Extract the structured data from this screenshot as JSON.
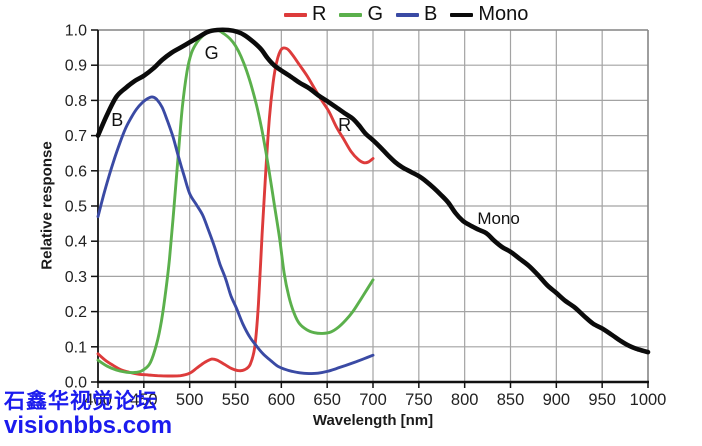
{
  "watermark": {
    "line1": "石鑫华视觉论坛",
    "line2": "visionbbs.com",
    "color": "#1b1bee"
  },
  "chart_data": {
    "type": "line",
    "title": "",
    "xlabel": "Wavelength [nm]",
    "ylabel": "Relative response",
    "xlim": [
      400,
      1000
    ],
    "ylim": [
      0.0,
      1.0
    ],
    "xticks": [
      400,
      450,
      500,
      550,
      600,
      650,
      700,
      750,
      800,
      850,
      900,
      950,
      1000
    ],
    "yticks": [
      0.0,
      0.1,
      0.2,
      0.3,
      0.4,
      0.5,
      0.6,
      0.7,
      0.8,
      0.9,
      1.0
    ],
    "grid": true,
    "legend_position": "top-center",
    "colors": {
      "grid": "#a3a3a3",
      "axis": "#1a1a1a",
      "tick_label": "#222222"
    },
    "series": [
      {
        "name": "R",
        "color": "#dd3b3b",
        "points": [
          [
            400,
            0.08
          ],
          [
            408,
            0.062
          ],
          [
            416,
            0.048
          ],
          [
            425,
            0.035
          ],
          [
            435,
            0.027
          ],
          [
            445,
            0.022
          ],
          [
            455,
            0.02
          ],
          [
            465,
            0.018
          ],
          [
            478,
            0.017
          ],
          [
            490,
            0.018
          ],
          [
            500,
            0.025
          ],
          [
            508,
            0.04
          ],
          [
            516,
            0.055
          ],
          [
            524,
            0.065
          ],
          [
            530,
            0.062
          ],
          [
            538,
            0.05
          ],
          [
            546,
            0.038
          ],
          [
            554,
            0.032
          ],
          [
            560,
            0.035
          ],
          [
            566,
            0.05
          ],
          [
            571,
            0.1
          ],
          [
            575,
            0.22
          ],
          [
            579,
            0.42
          ],
          [
            583,
            0.6
          ],
          [
            587,
            0.75
          ],
          [
            591,
            0.85
          ],
          [
            595,
            0.91
          ],
          [
            600,
            0.945
          ],
          [
            606,
            0.947
          ],
          [
            612,
            0.93
          ],
          [
            620,
            0.9
          ],
          [
            628,
            0.87
          ],
          [
            636,
            0.835
          ],
          [
            644,
            0.8
          ],
          [
            652,
            0.768
          ],
          [
            660,
            0.725
          ],
          [
            668,
            0.69
          ],
          [
            676,
            0.655
          ],
          [
            684,
            0.632
          ],
          [
            690,
            0.623
          ],
          [
            695,
            0.625
          ],
          [
            700,
            0.635
          ]
        ]
      },
      {
        "name": "G",
        "color": "#5bb04c",
        "points": [
          [
            400,
            0.062
          ],
          [
            410,
            0.045
          ],
          [
            420,
            0.034
          ],
          [
            430,
            0.028
          ],
          [
            440,
            0.027
          ],
          [
            448,
            0.032
          ],
          [
            456,
            0.05
          ],
          [
            462,
            0.09
          ],
          [
            468,
            0.155
          ],
          [
            473,
            0.24
          ],
          [
            478,
            0.35
          ],
          [
            483,
            0.5
          ],
          [
            488,
            0.66
          ],
          [
            492,
            0.78
          ],
          [
            497,
            0.88
          ],
          [
            502,
            0.935
          ],
          [
            508,
            0.965
          ],
          [
            515,
            0.985
          ],
          [
            522,
            0.998
          ],
          [
            530,
            1.0
          ],
          [
            537,
            0.99
          ],
          [
            544,
            0.975
          ],
          [
            550,
            0.955
          ],
          [
            556,
            0.925
          ],
          [
            562,
            0.885
          ],
          [
            568,
            0.835
          ],
          [
            574,
            0.775
          ],
          [
            580,
            0.7
          ],
          [
            586,
            0.61
          ],
          [
            592,
            0.51
          ],
          [
            598,
            0.41
          ],
          [
            603,
            0.31
          ],
          [
            608,
            0.245
          ],
          [
            614,
            0.195
          ],
          [
            620,
            0.165
          ],
          [
            628,
            0.148
          ],
          [
            636,
            0.14
          ],
          [
            645,
            0.138
          ],
          [
            654,
            0.142
          ],
          [
            662,
            0.155
          ],
          [
            670,
            0.175
          ],
          [
            678,
            0.2
          ],
          [
            686,
            0.232
          ],
          [
            694,
            0.265
          ],
          [
            700,
            0.29
          ]
        ]
      },
      {
        "name": "B",
        "color": "#3a4aa4",
        "points": [
          [
            400,
            0.47
          ],
          [
            406,
            0.53
          ],
          [
            412,
            0.585
          ],
          [
            418,
            0.635
          ],
          [
            424,
            0.68
          ],
          [
            430,
            0.72
          ],
          [
            436,
            0.75
          ],
          [
            442,
            0.775
          ],
          [
            448,
            0.793
          ],
          [
            454,
            0.805
          ],
          [
            459,
            0.81
          ],
          [
            464,
            0.803
          ],
          [
            470,
            0.78
          ],
          [
            476,
            0.74
          ],
          [
            482,
            0.695
          ],
          [
            488,
            0.638
          ],
          [
            494,
            0.585
          ],
          [
            500,
            0.535
          ],
          [
            507,
            0.505
          ],
          [
            514,
            0.475
          ],
          [
            520,
            0.435
          ],
          [
            527,
            0.385
          ],
          [
            533,
            0.335
          ],
          [
            539,
            0.295
          ],
          [
            545,
            0.245
          ],
          [
            551,
            0.21
          ],
          [
            558,
            0.165
          ],
          [
            565,
            0.13
          ],
          [
            572,
            0.105
          ],
          [
            580,
            0.08
          ],
          [
            588,
            0.062
          ],
          [
            596,
            0.045
          ],
          [
            604,
            0.036
          ],
          [
            612,
            0.03
          ],
          [
            620,
            0.026
          ],
          [
            630,
            0.024
          ],
          [
            640,
            0.025
          ],
          [
            650,
            0.03
          ],
          [
            660,
            0.038
          ],
          [
            670,
            0.047
          ],
          [
            680,
            0.056
          ],
          [
            690,
            0.066
          ],
          [
            700,
            0.076
          ]
        ]
      },
      {
        "name": "Mono",
        "color": "#0b0b0b",
        "points": [
          [
            400,
            0.7
          ],
          [
            410,
            0.76
          ],
          [
            420,
            0.81
          ],
          [
            430,
            0.835
          ],
          [
            440,
            0.855
          ],
          [
            450,
            0.87
          ],
          [
            460,
            0.89
          ],
          [
            470,
            0.915
          ],
          [
            480,
            0.935
          ],
          [
            490,
            0.95
          ],
          [
            500,
            0.965
          ],
          [
            510,
            0.98
          ],
          [
            520,
            0.995
          ],
          [
            530,
            1.0
          ],
          [
            542,
            1.0
          ],
          [
            552,
            0.995
          ],
          [
            560,
            0.985
          ],
          [
            570,
            0.965
          ],
          [
            578,
            0.945
          ],
          [
            585,
            0.92
          ],
          [
            592,
            0.9
          ],
          [
            600,
            0.885
          ],
          [
            610,
            0.868
          ],
          [
            620,
            0.85
          ],
          [
            630,
            0.835
          ],
          [
            640,
            0.815
          ],
          [
            650,
            0.798
          ],
          [
            660,
            0.78
          ],
          [
            670,
            0.762
          ],
          [
            678,
            0.748
          ],
          [
            685,
            0.728
          ],
          [
            692,
            0.705
          ],
          [
            700,
            0.687
          ],
          [
            708,
            0.667
          ],
          [
            716,
            0.645
          ],
          [
            724,
            0.625
          ],
          [
            732,
            0.61
          ],
          [
            742,
            0.596
          ],
          [
            750,
            0.585
          ],
          [
            758,
            0.57
          ],
          [
            766,
            0.552
          ],
          [
            774,
            0.532
          ],
          [
            782,
            0.51
          ],
          [
            790,
            0.48
          ],
          [
            798,
            0.458
          ],
          [
            806,
            0.445
          ],
          [
            815,
            0.433
          ],
          [
            824,
            0.422
          ],
          [
            832,
            0.402
          ],
          [
            841,
            0.383
          ],
          [
            850,
            0.37
          ],
          [
            860,
            0.35
          ],
          [
            870,
            0.33
          ],
          [
            880,
            0.304
          ],
          [
            890,
            0.275
          ],
          [
            900,
            0.253
          ],
          [
            910,
            0.23
          ],
          [
            920,
            0.212
          ],
          [
            930,
            0.188
          ],
          [
            940,
            0.166
          ],
          [
            950,
            0.152
          ],
          [
            960,
            0.135
          ],
          [
            970,
            0.117
          ],
          [
            980,
            0.102
          ],
          [
            990,
            0.092
          ],
          [
            1000,
            0.085
          ]
        ]
      }
    ],
    "annotations": [
      {
        "text": "B",
        "x": 421,
        "y": 0.745,
        "size": 18
      },
      {
        "text": "G",
        "x": 524,
        "y": 0.935,
        "size": 18
      },
      {
        "text": "R",
        "x": 669,
        "y": 0.73,
        "size": 18
      },
      {
        "text": "Mono",
        "x": 837,
        "y": 0.466,
        "size": 17
      }
    ]
  }
}
